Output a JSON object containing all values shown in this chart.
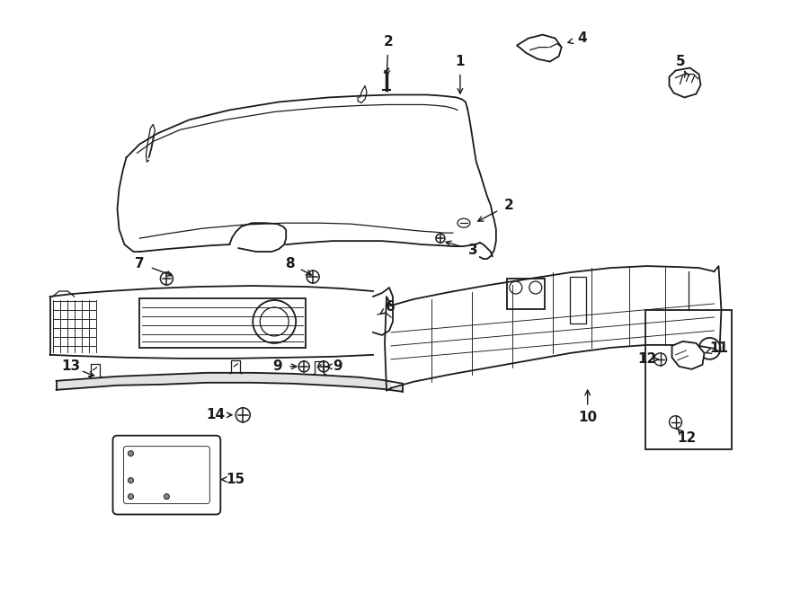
{
  "bg": "#ffffff",
  "lc": "#1a1a1a",
  "figw": 9.0,
  "figh": 6.61,
  "dpi": 100
}
